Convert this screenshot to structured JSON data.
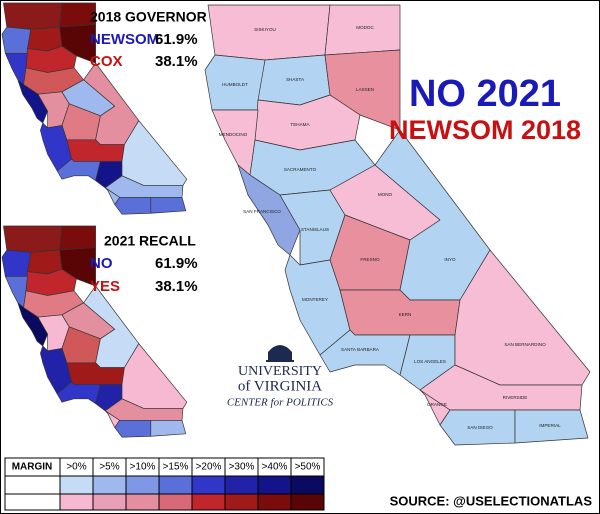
{
  "governor": {
    "title": "2018 GOVERNOR",
    "rows": [
      {
        "name": "NEWSOM",
        "share": "61.9%"
      },
      {
        "name": "COX",
        "share": "38.1%"
      }
    ]
  },
  "recall": {
    "title": "2021 RECALL",
    "rows": [
      {
        "name": "NO",
        "share": "61.9%"
      },
      {
        "name": "YES",
        "share": "38.1%"
      }
    ]
  },
  "headline": [
    "NO 2021",
    "NEWSOM 2018"
  ],
  "logo": [
    "UNIVERSITY",
    "of VIRGINIA",
    "CENTER for POLITICS"
  ],
  "legend": {
    "title": "MARGIN",
    "bins": [
      ">0%",
      ">5%",
      ">10%",
      ">15%",
      ">20%",
      ">30%",
      ">40%",
      ">50%"
    ]
  },
  "source": "SOURCE: @USELECTIONATLAS",
  "counties": [
    "SISKIYOU",
    "MODOC",
    "HUMBOLDT",
    "SHASTA",
    "LASSEN",
    "TEHAMA",
    "MENDOCINO",
    "SACRAMENTO",
    "SAN FRANCISCO",
    "STANISLAUS",
    "MONO",
    "FRESNO",
    "INYO",
    "MONTEREY",
    "KERN",
    "SANTA BARBARA",
    "LOS ANGELES",
    "SAN BERNARDINO",
    "RIVERSIDE",
    "ORANGE",
    "SAN DIEGO",
    "IMPERIAL"
  ]
}
